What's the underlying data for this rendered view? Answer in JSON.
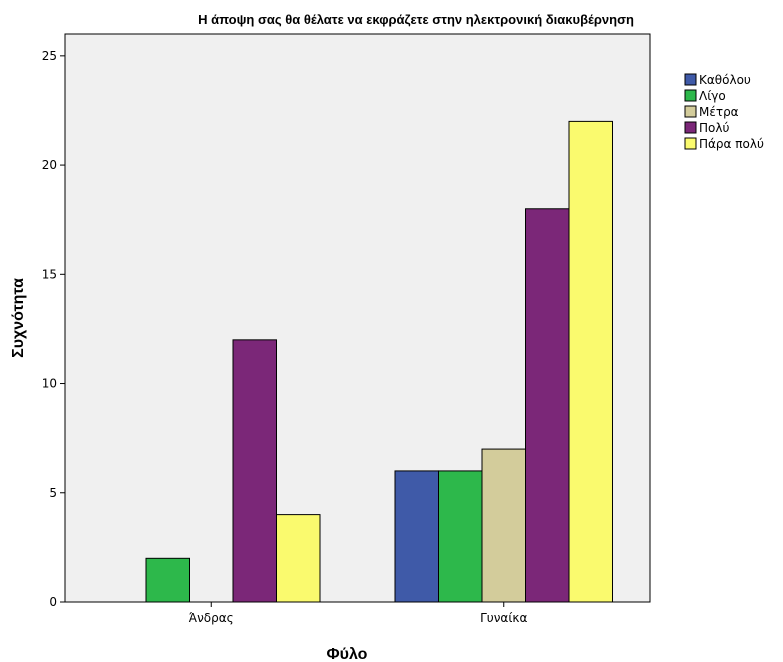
{
  "chart_data": {
    "type": "bar",
    "title": "Η άποψη σας θα θέλατε να εκφράζετε στην ηλεκτρονική διακυβέρνηση",
    "xlabel": "Φύλο",
    "ylabel": "Συχνότητα",
    "categories": [
      "Άνδρας",
      "Γυναίκα"
    ],
    "ylim": [
      0,
      26
    ],
    "yticks": [
      0,
      5,
      10,
      15,
      20,
      25
    ],
    "grid": false,
    "legend_position": "right",
    "series": [
      {
        "name": "Καθόλου",
        "color": "#3f5aa8",
        "values": [
          0,
          6
        ]
      },
      {
        "name": "Λίγο",
        "color": "#2db84b",
        "values": [
          2,
          6
        ]
      },
      {
        "name": "Μέτρα",
        "color": "#d3cc9b",
        "values": [
          0,
          7
        ]
      },
      {
        "name": "Πολύ",
        "color": "#7b2778",
        "values": [
          12,
          18
        ]
      },
      {
        "name": "Πάρα πολύ",
        "color": "#fafa6e",
        "values": [
          4,
          22
        ]
      }
    ],
    "plot_background": "#f0f0f0"
  }
}
